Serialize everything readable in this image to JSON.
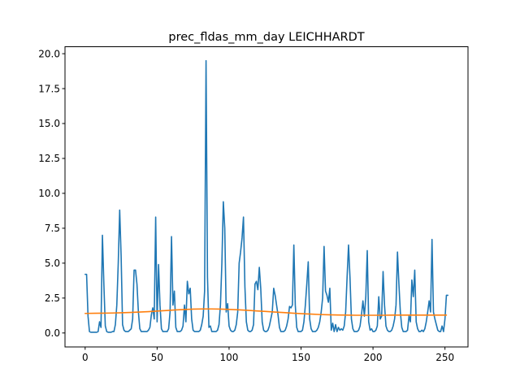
{
  "chart_data": {
    "type": "line",
    "title": "prec_fldas_mm_day LEICHHARDT",
    "xlabel": "",
    "ylabel": "",
    "xlim": [
      -14,
      266
    ],
    "ylim": [
      -1.0,
      20.5
    ],
    "xticks": [
      0,
      50,
      100,
      150,
      200,
      250
    ],
    "yticks": [
      0.0,
      2.5,
      5.0,
      7.5,
      10.0,
      12.5,
      15.0,
      17.5,
      20.0
    ],
    "grid": false,
    "colors": [
      "#1f77b4",
      "#ff7f0e"
    ],
    "series": [
      {
        "values": [
          4.2,
          4.2,
          1.2,
          0.1,
          0.05,
          0.05,
          0.05,
          0.05,
          0.05,
          0.1,
          0.8,
          0.4,
          7.0,
          3.5,
          0.5,
          0.1,
          0.05,
          0.05,
          0.05,
          0.1,
          0.1,
          0.6,
          2.0,
          5.0,
          8.8,
          5.5,
          0.6,
          0.2,
          0.1,
          0.1,
          0.1,
          0.2,
          0.3,
          1.0,
          4.5,
          4.5,
          3.5,
          1.5,
          0.3,
          0.1,
          0.1,
          0.1,
          0.1,
          0.1,
          0.2,
          0.4,
          1.3,
          1.8,
          1.0,
          8.3,
          0.8,
          4.9,
          2.0,
          0.3,
          0.1,
          0.1,
          0.1,
          0.1,
          0.3,
          1.5,
          6.9,
          2.0,
          3.0,
          0.4,
          0.1,
          0.1,
          0.1,
          0.2,
          0.5,
          2.0,
          0.8,
          3.7,
          2.8,
          3.2,
          1.0,
          0.2,
          0.1,
          0.1,
          0.1,
          0.1,
          0.2,
          0.6,
          1.2,
          3.0,
          19.5,
          4.0,
          0.4,
          0.5,
          0.1,
          0.1,
          0.1,
          0.1,
          0.2,
          0.6,
          2.0,
          5.0,
          9.4,
          7.5,
          1.5,
          2.1,
          0.5,
          0.2,
          0.1,
          0.1,
          0.2,
          0.6,
          1.5,
          5.0,
          5.8,
          6.8,
          8.3,
          3.3,
          0.8,
          0.2,
          0.1,
          0.1,
          0.2,
          0.6,
          3.5,
          3.7,
          3.1,
          4.7,
          3.2,
          0.8,
          0.2,
          0.1,
          0.1,
          0.2,
          0.5,
          1.0,
          1.5,
          3.2,
          2.7,
          2.0,
          1.3,
          0.4,
          0.1,
          0.1,
          0.1,
          0.2,
          0.5,
          1.0,
          1.9,
          1.8,
          2.0,
          6.3,
          2.0,
          0.4,
          0.1,
          0.1,
          0.1,
          0.2,
          0.8,
          2.0,
          3.5,
          5.1,
          1.0,
          0.3,
          0.1,
          0.1,
          0.1,
          0.2,
          0.4,
          0.8,
          1.5,
          2.5,
          6.2,
          3.0,
          2.7,
          2.2,
          3.2,
          0.2,
          0.7,
          0.1,
          0.6,
          0.1,
          0.4,
          0.2,
          0.3,
          0.2,
          0.5,
          1.5,
          4.0,
          6.3,
          4.0,
          1.0,
          0.3,
          0.1,
          0.1,
          0.1,
          0.2,
          0.5,
          1.3,
          2.3,
          1.2,
          2.6,
          5.9,
          0.8,
          0.2,
          0.3,
          0.1,
          0.1,
          0.2,
          0.5,
          2.6,
          1.0,
          1.2,
          4.4,
          2.0,
          0.5,
          0.2,
          0.1,
          0.1,
          0.2,
          0.5,
          1.0,
          2.0,
          5.8,
          3.5,
          1.5,
          0.4,
          0.1,
          0.1,
          0.1,
          0.2,
          1.2,
          0.8,
          3.8,
          2.6,
          4.5,
          0.8,
          0.3,
          0.1,
          0.1,
          0.2,
          0.1,
          0.3,
          0.8,
          1.5,
          2.3,
          1.5,
          6.7,
          1.5,
          1.0,
          0.6,
          0.2,
          0.1,
          0.1,
          0.5,
          0.1,
          1.0,
          2.7,
          2.7
        ]
      },
      {
        "values": [
          1.4,
          1.41,
          1.42,
          1.43,
          1.45,
          1.47,
          1.5,
          1.53,
          1.57,
          1.61,
          1.65,
          1.68,
          1.71,
          1.72,
          1.72,
          1.71,
          1.69,
          1.66,
          1.62,
          1.58,
          1.54,
          1.5,
          1.46,
          1.42,
          1.38,
          1.35,
          1.32,
          1.3,
          1.29,
          1.28,
          1.27,
          1.27,
          1.27,
          1.27,
          1.28,
          1.28,
          1.28,
          1.28,
          1.28,
          1.28,
          1.28
        ]
      }
    ]
  }
}
